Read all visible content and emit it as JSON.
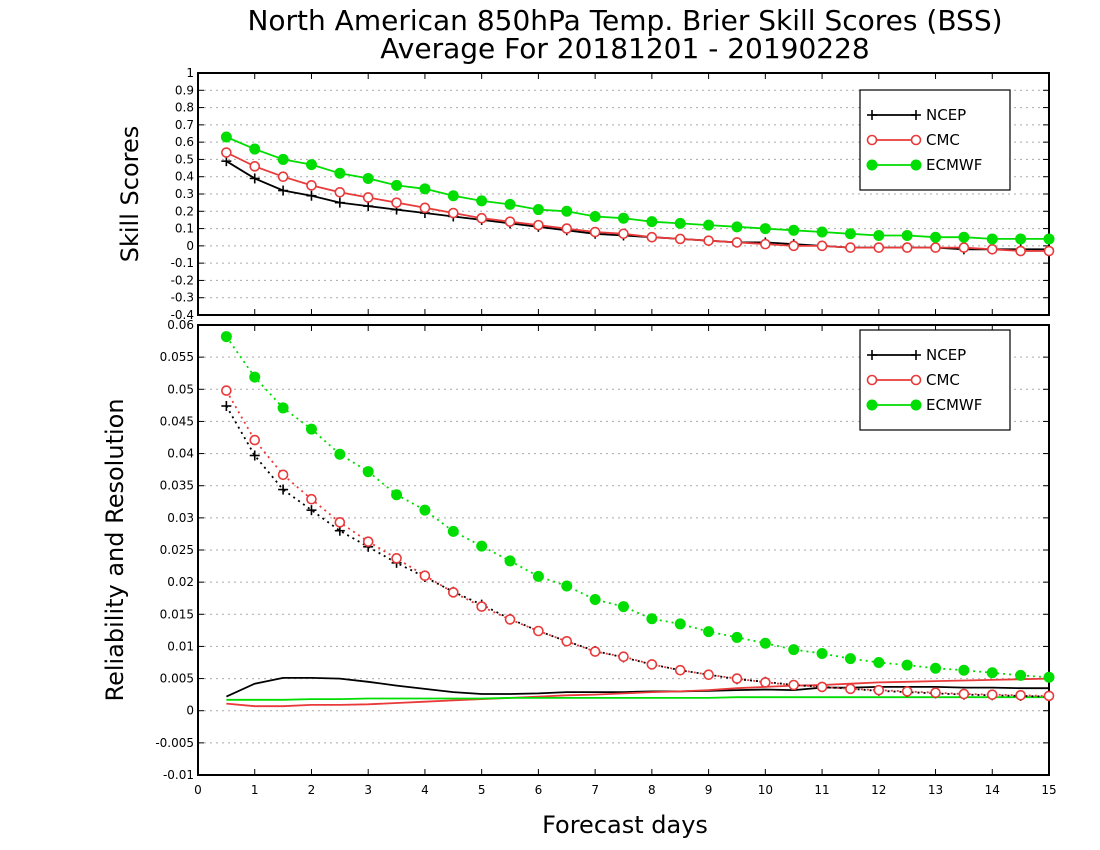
{
  "title_line1": "North American 850hPa Temp. Brier Skill Scores (BSS)",
  "title_line2": "Average For 20181201 - 20190228",
  "xlabel": "Forecast days",
  "colors": {
    "NCEP": "#000000",
    "CMC": "#e83a3a",
    "ECMWF": "#00dd00"
  },
  "chart_data": [
    {
      "type": "line",
      "ylabel": "Skill Scores",
      "xlim": [
        0,
        15
      ],
      "ylim": [
        -0.4,
        1
      ],
      "x_ticks": [
        0,
        1,
        2,
        3,
        4,
        5,
        6,
        7,
        8,
        9,
        10,
        11,
        12,
        13,
        14,
        15
      ],
      "y_ticks": [
        -0.4,
        -0.3,
        -0.2,
        -0.1,
        0,
        0.1,
        0.2,
        0.3,
        0.4,
        0.5,
        0.6,
        0.7,
        0.8,
        0.9,
        1
      ],
      "y_tick_labels": [
        "-0.4",
        "-0.3",
        "-0.2",
        "-0.1",
        "0",
        "0.1",
        "0.2",
        "0.3",
        "0.4",
        "0.5",
        "0.6",
        "0.7",
        "0.8",
        "0.9",
        "1"
      ],
      "grid": true,
      "legend": "top-right",
      "x": [
        0.5,
        1,
        1.5,
        2,
        2.5,
        3,
        3.5,
        4,
        4.5,
        5,
        5.5,
        6,
        6.5,
        7,
        7.5,
        8,
        8.5,
        9,
        9.5,
        10,
        10.5,
        11,
        11.5,
        12,
        12.5,
        13,
        13.5,
        14,
        14.5,
        15
      ],
      "series": [
        {
          "name": "NCEP",
          "marker": "plus",
          "style": "solid",
          "values": [
            0.49,
            0.39,
            0.32,
            0.29,
            0.25,
            0.23,
            0.21,
            0.19,
            0.17,
            0.15,
            0.13,
            0.11,
            0.09,
            0.07,
            0.06,
            0.05,
            0.04,
            0.03,
            0.02,
            0.02,
            0.01,
            0,
            -0.01,
            -0.01,
            -0.01,
            -0.01,
            -0.02,
            -0.02,
            -0.02,
            -0.02
          ]
        },
        {
          "name": "CMC",
          "marker": "open-circle",
          "style": "solid",
          "values": [
            0.54,
            0.46,
            0.4,
            0.35,
            0.31,
            0.28,
            0.25,
            0.22,
            0.19,
            0.16,
            0.14,
            0.12,
            0.1,
            0.08,
            0.07,
            0.05,
            0.04,
            0.03,
            0.02,
            0.01,
            0,
            0,
            -0.01,
            -0.01,
            -0.01,
            -0.01,
            -0.01,
            -0.02,
            -0.03,
            -0.03
          ]
        },
        {
          "name": "ECMWF",
          "marker": "filled-circle",
          "style": "solid",
          "values": [
            0.63,
            0.56,
            0.5,
            0.47,
            0.42,
            0.39,
            0.35,
            0.33,
            0.29,
            0.26,
            0.24,
            0.21,
            0.2,
            0.17,
            0.16,
            0.14,
            0.13,
            0.12,
            0.11,
            0.1,
            0.09,
            0.08,
            0.07,
            0.06,
            0.06,
            0.05,
            0.05,
            0.04,
            0.04,
            0.04
          ]
        }
      ]
    },
    {
      "type": "line",
      "ylabel": "Reliability and Resolution",
      "xlim": [
        0,
        15
      ],
      "ylim": [
        -0.01,
        0.06
      ],
      "x_ticks": [
        0,
        1,
        2,
        3,
        4,
        5,
        6,
        7,
        8,
        9,
        10,
        11,
        12,
        13,
        14,
        15
      ],
      "y_ticks": [
        -0.01,
        -0.005,
        0,
        0.005,
        0.01,
        0.015,
        0.02,
        0.025,
        0.03,
        0.035,
        0.04,
        0.045,
        0.05,
        0.055,
        0.06
      ],
      "y_tick_labels": [
        "-0.01",
        "-0.005",
        "0",
        "0.005",
        "0.01",
        "0.015",
        "0.02",
        "0.025",
        "0.03",
        "0.035",
        "0.04",
        "0.045",
        "0.05",
        "0.055",
        "0.06"
      ],
      "grid": true,
      "legend": "top-right",
      "x": [
        0.5,
        1,
        1.5,
        2,
        2.5,
        3,
        3.5,
        4,
        4.5,
        5,
        5.5,
        6,
        6.5,
        7,
        7.5,
        8,
        8.5,
        9,
        9.5,
        10,
        10.5,
        11,
        11.5,
        12,
        12.5,
        13,
        13.5,
        14,
        14.5,
        15
      ],
      "legend_entries": [
        {
          "name": "NCEP",
          "marker": "plus"
        },
        {
          "name": "CMC",
          "marker": "open-circle"
        },
        {
          "name": "ECMWF",
          "marker": "filled-circle"
        }
      ],
      "series": [
        {
          "group": "NCEP",
          "component": "reliability",
          "marker": "none",
          "style": "solid",
          "values": [
            0.0022,
            0.0042,
            0.0051,
            0.0051,
            0.005,
            0.0045,
            0.0039,
            0.0034,
            0.0029,
            0.0026,
            0.0026,
            0.0027,
            0.0029,
            0.0029,
            0.0029,
            0.003,
            0.003,
            0.0031,
            0.0032,
            0.0033,
            0.0032,
            0.0036,
            0.0036,
            0.0037,
            0.0037,
            0.0037,
            0.0036,
            0.0036,
            0.0035,
            0.0035
          ]
        },
        {
          "group": "CMC",
          "component": "reliability",
          "marker": "none",
          "style": "solid",
          "values": [
            0.0011,
            0.0007,
            0.0007,
            0.0009,
            0.0009,
            0.001,
            0.0012,
            0.0014,
            0.0016,
            0.0018,
            0.002,
            0.0022,
            0.0024,
            0.0025,
            0.0027,
            0.0029,
            0.003,
            0.0032,
            0.0035,
            0.0037,
            0.0039,
            0.004,
            0.0042,
            0.0044,
            0.0045,
            0.0046,
            0.0047,
            0.0048,
            0.0049,
            0.005
          ]
        },
        {
          "group": "ECMWF",
          "component": "reliability",
          "marker": "none",
          "style": "solid",
          "values": [
            0.0017,
            0.0017,
            0.0017,
            0.0018,
            0.0018,
            0.0019,
            0.0019,
            0.0019,
            0.0019,
            0.0019,
            0.002,
            0.002,
            0.002,
            0.002,
            0.002,
            0.002,
            0.002,
            0.002,
            0.0021,
            0.0021,
            0.0021,
            0.0021,
            0.0021,
            0.0021,
            0.0021,
            0.0021,
            0.0021,
            0.0021,
            0.0021,
            0.0021
          ]
        },
        {
          "group": "NCEP",
          "component": "resolution",
          "marker": "plus",
          "style": "dotted",
          "values": [
            0.0474,
            0.0397,
            0.0344,
            0.0312,
            0.028,
            0.0255,
            0.023,
            0.0208,
            0.0185,
            0.0165,
            0.0143,
            0.0124,
            0.0108,
            0.0093,
            0.0083,
            0.0072,
            0.0063,
            0.0056,
            0.0049,
            0.0045,
            0.004,
            0.0037,
            0.0034,
            0.0031,
            0.0029,
            0.0027,
            0.0025,
            0.0024,
            0.0023,
            0.0022
          ]
        },
        {
          "group": "CMC",
          "component": "resolution",
          "marker": "open-circle",
          "style": "dotted",
          "values": [
            0.0498,
            0.0421,
            0.0367,
            0.0329,
            0.0293,
            0.0263,
            0.0237,
            0.021,
            0.0184,
            0.0162,
            0.0142,
            0.0124,
            0.0108,
            0.0092,
            0.0084,
            0.0072,
            0.0063,
            0.0056,
            0.005,
            0.0044,
            0.004,
            0.0037,
            0.0034,
            0.0032,
            0.003,
            0.0028,
            0.0026,
            0.0025,
            0.0024,
            0.0023
          ]
        },
        {
          "group": "ECMWF",
          "component": "resolution",
          "marker": "filled-circle",
          "style": "dotted",
          "values": [
            0.0582,
            0.0519,
            0.0471,
            0.0438,
            0.0399,
            0.0372,
            0.0336,
            0.0312,
            0.0279,
            0.0256,
            0.0233,
            0.0209,
            0.0194,
            0.0173,
            0.0162,
            0.0143,
            0.0135,
            0.0123,
            0.0114,
            0.0105,
            0.0095,
            0.0089,
            0.0081,
            0.0075,
            0.0071,
            0.0066,
            0.0063,
            0.0059,
            0.0055,
            0.0052
          ]
        }
      ]
    }
  ]
}
